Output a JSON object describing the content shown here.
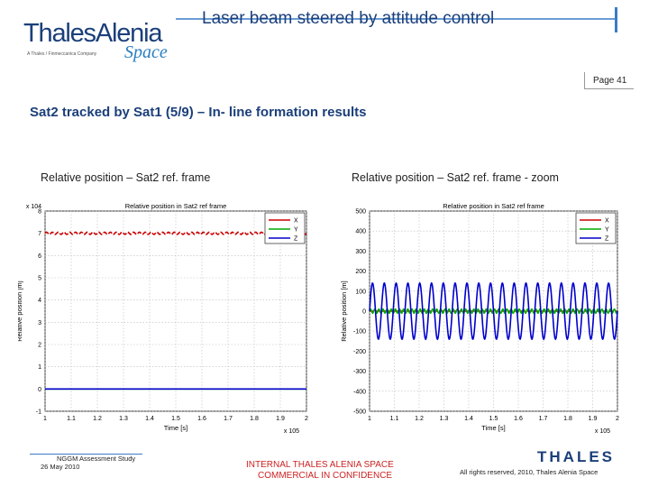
{
  "header": {
    "logo_main": "ThalesAlenia",
    "logo_tagline": "A Thales / Finmeccanica Company",
    "logo_sub": "Space",
    "title": "Laser beam steered by attitude control",
    "page": "Page 41"
  },
  "slide_title": "Sat2 tracked by Sat1 (5/9) – In- line formation results",
  "captions": {
    "left": "Relative position – Sat2 ref. frame",
    "right": "Relative position – Sat2 ref. frame - zoom"
  },
  "chart_data": [
    {
      "type": "line",
      "title": "Relative position in Sat2 ref frame",
      "xlabel": "Time [s]",
      "ylabel": "Relative position [m]",
      "x_exponent": "x 10^5",
      "y_exponent": "x 10^4",
      "xlim": [
        1.0,
        2.0
      ],
      "ylim": [
        -1,
        8
      ],
      "x_ticks": [
        "1",
        "1.1",
        "1.2",
        "1.3",
        "1.4",
        "1.5",
        "1.6",
        "1.7",
        "1.8",
        "1.9",
        "2"
      ],
      "y_ticks": [
        "-1",
        "0",
        "1",
        "2",
        "3",
        "4",
        "5",
        "6",
        "7",
        "8"
      ],
      "grid": true,
      "legend_position": "top-right",
      "series": [
        {
          "name": "X",
          "color": "#cc0000",
          "x": [
            1.0,
            2.0
          ],
          "values": [
            7.0,
            7.0
          ],
          "oscillation_amplitude": 0.05,
          "oscillation_count": 45
        },
        {
          "name": "Y",
          "color": "#00aa00",
          "x": [
            1.0,
            2.0
          ],
          "values": [
            0.0,
            0.0
          ],
          "oscillation_amplitude": 0.0,
          "oscillation_count": 0
        },
        {
          "name": "Z",
          "color": "#0000cc",
          "x": [
            1.0,
            2.0
          ],
          "values": [
            0.0,
            0.0
          ],
          "oscillation_amplitude": 0.0,
          "oscillation_count": 0
        }
      ]
    },
    {
      "type": "line",
      "title": "Relative position in Sat2 ref frame",
      "xlabel": "Time [s]",
      "ylabel": "Relative position [m]",
      "x_exponent": "x 10^5",
      "xlim": [
        1.0,
        2.0
      ],
      "ylim": [
        -500,
        500
      ],
      "x_ticks": [
        "1",
        "1.1",
        "1.2",
        "1.3",
        "1.4",
        "1.5",
        "1.6",
        "1.7",
        "1.8",
        "1.9",
        "2"
      ],
      "y_ticks": [
        "-500",
        "-400",
        "-300",
        "-200",
        "-100",
        "0",
        "100",
        "200",
        "300",
        "400",
        "500"
      ],
      "grid": true,
      "legend_position": "top-right",
      "series": [
        {
          "name": "X",
          "color": "#cc0000",
          "x": [
            1.0,
            2.0
          ],
          "values": [
            0,
            0
          ],
          "oscillation_amplitude": 0,
          "oscillation_count": 0
        },
        {
          "name": "Y",
          "color": "#00aa00",
          "x": [
            1.0,
            2.0
          ],
          "values": [
            0,
            0
          ],
          "oscillation_amplitude": 10,
          "oscillation_count": 60
        },
        {
          "name": "Z",
          "color": "#0000cc",
          "x": [
            1.0,
            2.0
          ],
          "values": [
            0,
            0
          ],
          "oscillation_amplitude": 140,
          "oscillation_count": 21
        }
      ]
    }
  ],
  "footer": {
    "study": "NGGM Assessment Study",
    "date": "26 May 2010",
    "confidential_line1": "INTERNAL THALES ALENIA SPACE",
    "confidential_line2": "COMMERCIAL IN CONFIDENCE",
    "brand": "THALES",
    "rights": "All rights reserved, 2010, Thales Alenia Space"
  }
}
